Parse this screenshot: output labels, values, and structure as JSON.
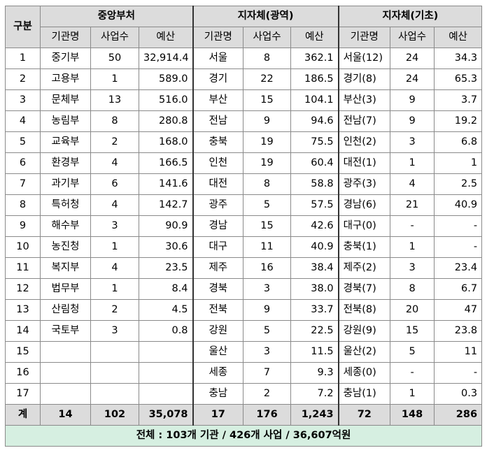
{
  "headers": {
    "gubun": "구분",
    "groups": [
      "중앙부처",
      "지자체(광역)",
      "지자체(기초)"
    ],
    "sub": [
      "기관명",
      "사업수",
      "예산"
    ]
  },
  "rows": [
    {
      "no": "1",
      "c1": "중기부",
      "c2": "50",
      "c3": "32,914.4",
      "k1": "서울",
      "k2": "8",
      "k3": "362.1",
      "b1": "서울(12)",
      "b2": "24",
      "b3": "34.3"
    },
    {
      "no": "2",
      "c1": "고용부",
      "c2": "1",
      "c3": "589.0",
      "k1": "경기",
      "k2": "22",
      "k3": "186.5",
      "b1": "경기(8)",
      "b2": "24",
      "b3": "65.3"
    },
    {
      "no": "3",
      "c1": "문체부",
      "c2": "13",
      "c3": "516.0",
      "k1": "부산",
      "k2": "15",
      "k3": "104.1",
      "b1": "부산(3)",
      "b2": "9",
      "b3": "3.7"
    },
    {
      "no": "4",
      "c1": "농림부",
      "c2": "8",
      "c3": "280.8",
      "k1": "전남",
      "k2": "9",
      "k3": "94.6",
      "b1": "전남(7)",
      "b2": "9",
      "b3": "19.2"
    },
    {
      "no": "5",
      "c1": "교육부",
      "c2": "2",
      "c3": "168.0",
      "k1": "충북",
      "k2": "19",
      "k3": "75.5",
      "b1": "인천(2)",
      "b2": "3",
      "b3": "6.8"
    },
    {
      "no": "6",
      "c1": "환경부",
      "c2": "4",
      "c3": "166.5",
      "k1": "인천",
      "k2": "19",
      "k3": "60.4",
      "b1": "대전(1)",
      "b2": "1",
      "b3": "1"
    },
    {
      "no": "7",
      "c1": "과기부",
      "c2": "6",
      "c3": "141.6",
      "k1": "대전",
      "k2": "8",
      "k3": "58.8",
      "b1": "광주(3)",
      "b2": "4",
      "b3": "2.5"
    },
    {
      "no": "8",
      "c1": "특허청",
      "c2": "4",
      "c3": "142.7",
      "k1": "광주",
      "k2": "5",
      "k3": "57.5",
      "b1": "경남(6)",
      "b2": "21",
      "b3": "40.9"
    },
    {
      "no": "9",
      "c1": "해수부",
      "c2": "3",
      "c3": "90.9",
      "k1": "경남",
      "k2": "15",
      "k3": "42.6",
      "b1": "대구(0)",
      "b2": "-",
      "b3": "-"
    },
    {
      "no": "10",
      "c1": "농진청",
      "c2": "1",
      "c3": "30.6",
      "k1": "대구",
      "k2": "11",
      "k3": "40.9",
      "b1": "충북(1)",
      "b2": "1",
      "b3": "-"
    },
    {
      "no": "11",
      "c1": "복지부",
      "c2": "4",
      "c3": "23.5",
      "k1": "제주",
      "k2": "16",
      "k3": "38.4",
      "b1": "제주(2)",
      "b2": "3",
      "b3": "23.4"
    },
    {
      "no": "12",
      "c1": "법무부",
      "c2": "1",
      "c3": "8.4",
      "k1": "경북",
      "k2": "3",
      "k3": "38.0",
      "b1": "경북(7)",
      "b2": "8",
      "b3": "6.7"
    },
    {
      "no": "13",
      "c1": "산림청",
      "c2": "2",
      "c3": "4.5",
      "k1": "전북",
      "k2": "9",
      "k3": "33.7",
      "b1": "전북(8)",
      "b2": "20",
      "b3": "47"
    },
    {
      "no": "14",
      "c1": "국토부",
      "c2": "3",
      "c3": "0.8",
      "k1": "강원",
      "k2": "5",
      "k3": "22.5",
      "b1": "강원(9)",
      "b2": "15",
      "b3": "23.8"
    },
    {
      "no": "15",
      "c1": "",
      "c2": "",
      "c3": "",
      "k1": "울산",
      "k2": "3",
      "k3": "11.5",
      "b1": "울산(2)",
      "b2": "5",
      "b3": "11"
    },
    {
      "no": "16",
      "c1": "",
      "c2": "",
      "c3": "",
      "k1": "세종",
      "k2": "7",
      "k3": "9.3",
      "b1": "세종(0)",
      "b2": "-",
      "b3": "-"
    },
    {
      "no": "17",
      "c1": "",
      "c2": "",
      "c3": "",
      "k1": "충남",
      "k2": "2",
      "k3": "7.2",
      "b1": "충남(1)",
      "b2": "1",
      "b3": "0.3"
    }
  ],
  "total": {
    "label": "계",
    "c1": "14",
    "c2": "102",
    "c3": "35,078",
    "k1": "17",
    "k2": "176",
    "k3": "1,243",
    "b1": "72",
    "b2": "148",
    "b3": "286"
  },
  "summary": "전체 : 103개 기관 / 426개 사업 / 36,607억원"
}
